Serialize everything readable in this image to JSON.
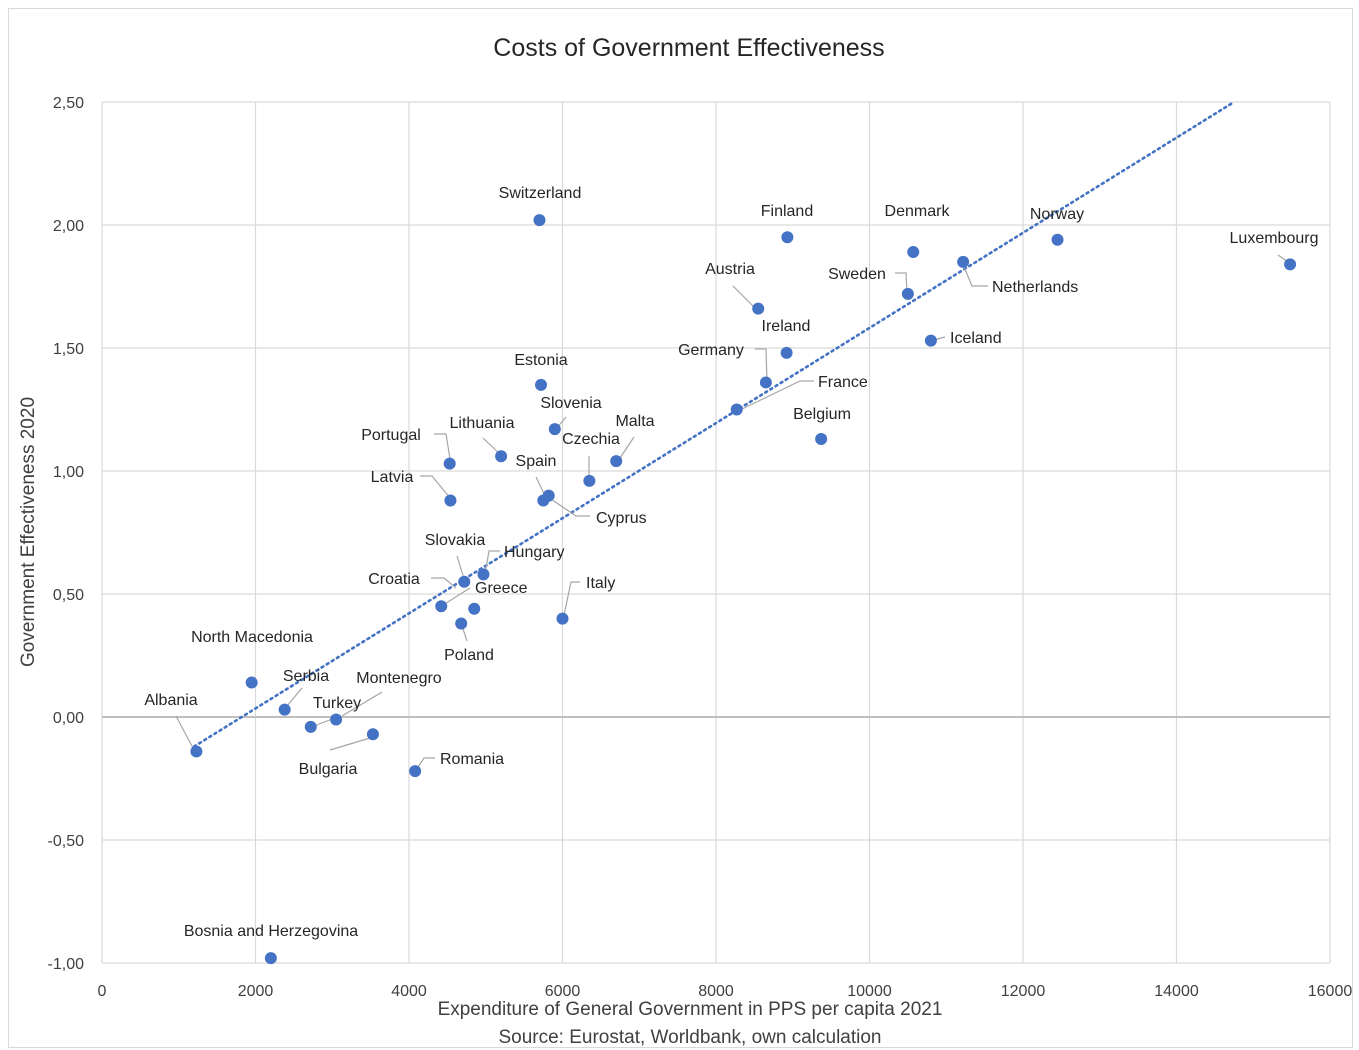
{
  "chart_data": {
    "type": "scatter",
    "title": "Costs of Government Effectiveness",
    "xlabel": "Expenditure of General Government in PPS per capita 2021",
    "source": "Source: Eurostat, Worldbank, own calculation",
    "ylabel": "Government Effectiveness 2020",
    "xlim": [
      0,
      16000
    ],
    "ylim": [
      -1,
      2.5
    ],
    "x_ticks": [
      "0",
      "2000",
      "4000",
      "6000",
      "8000",
      "10000",
      "12000",
      "14000",
      "16000"
    ],
    "y_ticks": [
      "2,50",
      "2,00",
      "1,50",
      "1,00",
      "0,50",
      "0,00",
      "-0,50",
      "-1,00"
    ],
    "grid": true,
    "marker_color": "#4472c4",
    "trendline": {
      "style": "dotted",
      "color": "#4472c4",
      "from": [
        1200,
        -0.12
      ],
      "to": [
        14750,
        2.5
      ]
    },
    "points": [
      {
        "label": "Switzerland",
        "x": 5700,
        "y": 2.02
      },
      {
        "label": "Finland",
        "x": 8930,
        "y": 1.95
      },
      {
        "label": "Denmark",
        "x": 10570,
        "y": 1.89
      },
      {
        "label": "Norway",
        "x": 12450,
        "y": 1.94
      },
      {
        "label": "Luxembourg",
        "x": 15480,
        "y": 1.84
      },
      {
        "label": "Netherlands",
        "x": 11220,
        "y": 1.85
      },
      {
        "label": "Sweden",
        "x": 10500,
        "y": 1.72
      },
      {
        "label": "Austria",
        "x": 8550,
        "y": 1.66
      },
      {
        "label": "Ireland",
        "x": 8920,
        "y": 1.48
      },
      {
        "label": "Iceland",
        "x": 10800,
        "y": 1.53
      },
      {
        "label": "Germany",
        "x": 8650,
        "y": 1.36
      },
      {
        "label": "France",
        "x": 8270,
        "y": 1.25
      },
      {
        "label": "Belgium",
        "x": 9370,
        "y": 1.13
      },
      {
        "label": "Estonia",
        "x": 5720,
        "y": 1.35
      },
      {
        "label": "Slovenia",
        "x": 5900,
        "y": 1.17
      },
      {
        "label": "Malta",
        "x": 6700,
        "y": 1.04
      },
      {
        "label": "Czechia",
        "x": 6350,
        "y": 0.96
      },
      {
        "label": "Lithuania",
        "x": 5200,
        "y": 1.06
      },
      {
        "label": "Spain",
        "x": 5820,
        "y": 0.9
      },
      {
        "label": "Cyprus",
        "x": 5750,
        "y": 0.88
      },
      {
        "label": "Portugal",
        "x": 4530,
        "y": 1.03
      },
      {
        "label": "Latvia",
        "x": 4540,
        "y": 0.88
      },
      {
        "label": "Slovakia",
        "x": 4720,
        "y": 0.55
      },
      {
        "label": "Hungary",
        "x": 4970,
        "y": 0.58
      },
      {
        "label": "Croatia",
        "x": 4420,
        "y": 0.45
      },
      {
        "label": "Greece",
        "x": 4850,
        "y": 0.44
      },
      {
        "label": "Poland",
        "x": 4680,
        "y": 0.38
      },
      {
        "label": "Italy",
        "x": 6000,
        "y": 0.4
      },
      {
        "label": "North Macedonia",
        "x": 1950,
        "y": 0.14
      },
      {
        "label": "Serbia",
        "x": 2380,
        "y": 0.03
      },
      {
        "label": "Turkey",
        "x": 2720,
        "y": -0.04
      },
      {
        "label": "Montenegro",
        "x": 3050,
        "y": -0.01
      },
      {
        "label": "Bulgaria",
        "x": 3530,
        "y": -0.07
      },
      {
        "label": "Albania",
        "x": 1230,
        "y": -0.14
      },
      {
        "label": "Romania",
        "x": 4080,
        "y": -0.22
      },
      {
        "label": "Bosnia and Herzegovina",
        "x": 2200,
        "y": -0.98
      }
    ]
  }
}
